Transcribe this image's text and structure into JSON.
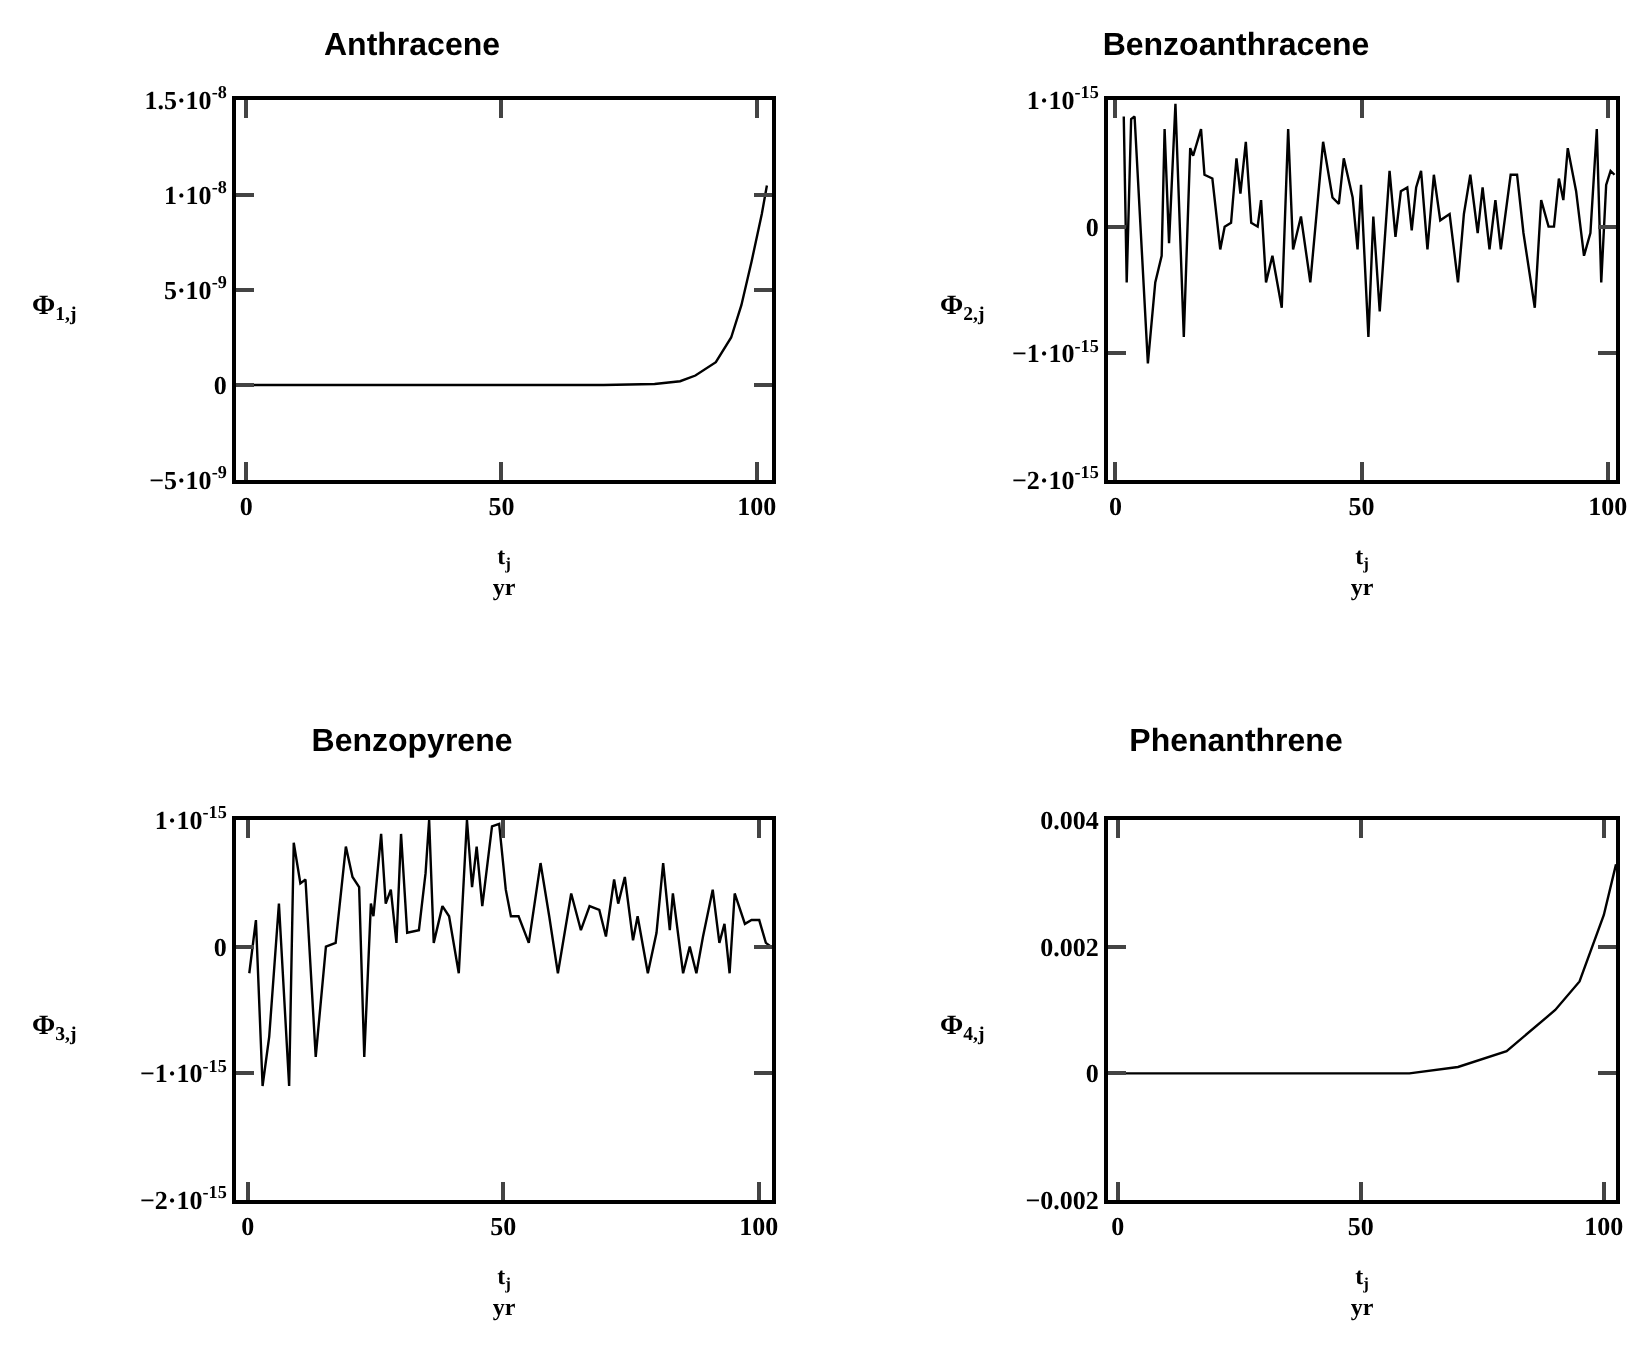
{
  "chart_data": [
    {
      "type": "line",
      "title": "Anthracene",
      "xlabel": "t$_{j}$\nyr",
      "ylabel": "Φ$_{1,j}$",
      "xlim": [
        -2,
        103
      ],
      "xticks": [
        0,
        50,
        100
      ],
      "ylim": [
        -5e-09,
        1.5e-08
      ],
      "yticks": [
        {
          "value": -5e-09,
          "label": "−5·10$^{-9}$"
        },
        {
          "value": 0,
          "label": "0"
        },
        {
          "value": 5e-09,
          "label": "5·10$^{-9}$"
        },
        {
          "value": 1e-08,
          "label": "1·10$^{-8}$"
        },
        {
          "value": 1.5e-08,
          "label": "1.5·10$^{-8}$"
        }
      ],
      "series": [
        {
          "color": "#000000",
          "x": [
            0,
            10,
            20,
            30,
            40,
            50,
            60,
            70,
            80,
            85,
            88,
            92,
            95,
            97,
            99,
            101,
            102
          ],
          "values": [
            0,
            0,
            0,
            0,
            0,
            0,
            0,
            0,
            5e-11,
            2e-10,
            5e-10,
            1.2e-09,
            2.5e-09,
            4.2e-09,
            6.5e-09,
            9e-09,
            1.05e-08
          ]
        }
      ]
    },
    {
      "type": "line",
      "title": "Benzoanthracene",
      "xlabel": "t$_{j}$\nyr",
      "ylabel": "Φ$_{2,j}$",
      "xlim": [
        -1.5,
        101.7
      ],
      "xticks": [
        0,
        50,
        100
      ],
      "ylim": [
        -2e-15,
        1e-15
      ],
      "yticks": [
        {
          "value": -2e-15,
          "label": "−2·10$^{-15}$"
        },
        {
          "value": -1e-15,
          "label": "−1·10$^{-15}$"
        },
        {
          "value": 0,
          "label": "0"
        },
        {
          "value": 1e-15,
          "label": "1·10$^{-15}$"
        }
      ],
      "series": [
        {
          "color": "#000000",
          "x": [
            1.7,
            2.3,
            3.2,
            3.9,
            6.6,
            8.1,
            9.4,
            10,
            10.9,
            12.2,
            13.9,
            15.2,
            15.8,
            17.4,
            18.1,
            19.7,
            21.3,
            22.2,
            23.5,
            24.6,
            25.4,
            26.5,
            27.6,
            28.9,
            29.6,
            30.6,
            31.9,
            33.8,
            35.1,
            36.1,
            37.7,
            39.6,
            42.2,
            44.1,
            45.4,
            46.4,
            48.2,
            49.2,
            49.9,
            51.4,
            52.4,
            53.7,
            55.7,
            56.9,
            58,
            59.3,
            60.2,
            61.1,
            62.1,
            63.4,
            64.7,
            66,
            67.9,
            69.6,
            70.8,
            72.1,
            73.6,
            74.6,
            76,
            77.2,
            78.3,
            80.3,
            81.6,
            82.9,
            85.2,
            86.5,
            88,
            89.1,
            90.1,
            91,
            91.9,
            93.6,
            95.2,
            96.5,
            97.8,
            98.7,
            99.7,
            100.6,
            101.4
          ],
          "values": [
            8.7e-16,
            -4.4e-16,
            8.5e-16,
            8.7e-16,
            -1.08e-15,
            -4.4e-16,
            -2.3e-16,
            7.7e-16,
            -1.3e-16,
            9.7e-16,
            -8.7e-16,
            6.2e-16,
            5.6e-16,
            7.7e-16,
            4.1e-16,
            3.8e-16,
            -1.8e-16,
            0,
            3e-17,
            5.4e-16,
            2.6e-16,
            6.7e-16,
            3e-17,
            0,
            2.1e-16,
            -4.4e-16,
            -2.3e-16,
            -6.4e-16,
            7.7e-16,
            -1.8e-16,
            8e-17,
            -4.4e-16,
            6.7e-16,
            2.3e-16,
            1.8e-16,
            5.4e-16,
            2.3e-16,
            -1.8e-16,
            3.3e-16,
            -8.7e-16,
            8e-17,
            -6.7e-16,
            4.4e-16,
            -8e-17,
            2.8e-16,
            3.1e-16,
            -3e-17,
            3.1e-16,
            4.4e-16,
            -1.8e-16,
            4.1e-16,
            5e-17,
            1e-16,
            -4.4e-16,
            1e-16,
            4.1e-16,
            -5e-17,
            3.1e-16,
            -1.8e-16,
            2.1e-16,
            -1.8e-16,
            4.1e-16,
            4.1e-16,
            -5e-17,
            -6.4e-16,
            2.1e-16,
            0,
            0,
            3.8e-16,
            2.1e-16,
            6.2e-16,
            2.8e-16,
            -2.3e-16,
            -5e-17,
            7.7e-16,
            -4.4e-16,
            3.3e-16,
            4.4e-16,
            4.1e-16
          ]
        }
      ]
    },
    {
      "type": "line",
      "title": "Benzopyrene",
      "xlabel": "t$_{j}$\nyr",
      "ylabel": "Φ$_{3,j}$",
      "xlim": [
        -2.3,
        102.6
      ],
      "xticks": [
        0,
        50,
        100
      ],
      "ylim": [
        -2e-15,
        1e-15
      ],
      "yticks": [
        {
          "value": -2e-15,
          "label": "−2·10$^{-15}$"
        },
        {
          "value": -1e-15,
          "label": "−1·10$^{-15}$"
        },
        {
          "value": 0,
          "label": "0"
        },
        {
          "value": 1e-15,
          "label": "1·10$^{-15}$"
        }
      ],
      "series": [
        {
          "color": "#000000",
          "x": [
            0.3,
            1.6,
            2.9,
            4.2,
            6.1,
            8.1,
            9,
            10.3,
            11.3,
            13.3,
            15.3,
            17.2,
            19.2,
            20.5,
            21.8,
            22.8,
            24.1,
            24.6,
            26.1,
            27,
            28,
            29.1,
            30,
            31.2,
            33.5,
            34.8,
            35.5,
            36.4,
            38.1,
            39.4,
            41.3,
            42.9,
            43.9,
            44.8,
            45.9,
            47.8,
            49.2,
            50.5,
            51.5,
            53,
            55,
            57.3,
            59,
            60.7,
            63.3,
            65.2,
            66.9,
            68.8,
            70.1,
            71.7,
            72.5,
            73.8,
            75.4,
            76.3,
            78.3,
            80,
            81.3,
            82.6,
            83.2,
            85.2,
            86.5,
            87.8,
            89.1,
            91,
            92.3,
            93.3,
            94.3,
            95.3,
            97.3,
            98.6,
            100.1,
            101.4,
            102.4
          ],
          "values": [
            -2.1e-16,
            2.1e-16,
            -1.1e-15,
            -7.1e-16,
            3.4e-16,
            -1.1e-15,
            8.2e-16,
            5e-16,
            5.3e-16,
            -8.7e-16,
            0,
            3e-17,
            7.9e-16,
            5.5e-16,
            4.7e-16,
            -8.7e-16,
            3.4e-16,
            2.4e-16,
            8.9e-16,
            3.4e-16,
            4.5e-16,
            3e-17,
            8.9e-16,
            1.1e-16,
            1.3e-16,
            5.8e-16,
            1e-15,
            3e-17,
            3.2e-16,
            2.4e-16,
            -2.1e-16,
            1e-15,
            4.7e-16,
            7.9e-16,
            3.2e-16,
            9.5e-16,
            9.7e-16,
            4.5e-16,
            2.4e-16,
            2.4e-16,
            3e-17,
            6.6e-16,
            2.4e-16,
            -2.1e-16,
            4.2e-16,
            1.3e-16,
            3.2e-16,
            2.9e-16,
            8e-17,
            5.3e-16,
            3.4e-16,
            5.5e-16,
            5e-17,
            2.4e-16,
            -2.1e-16,
            1.1e-16,
            6.6e-16,
            1.3e-16,
            4.2e-16,
            -2.1e-16,
            0,
            -2.1e-16,
            8e-17,
            4.5e-16,
            3e-17,
            1.8e-16,
            -2.1e-16,
            4.2e-16,
            1.8e-16,
            2.1e-16,
            2.1e-16,
            3e-17,
            0
          ]
        }
      ]
    },
    {
      "type": "line",
      "title": "Phenanthrene",
      "xlabel": "t$_{j}$\nyr",
      "ylabel": "Φ$_{4,j}$",
      "xlim": [
        -2,
        102.5
      ],
      "xticks": [
        0,
        50,
        100
      ],
      "ylim": [
        -0.002,
        0.004
      ],
      "yticks": [
        {
          "value": -0.002,
          "label": "−0.002"
        },
        0,
        0.002,
        0.004
      ],
      "series": [
        {
          "color": "#000000",
          "x": [
            0,
            10,
            20,
            30,
            40,
            50,
            60,
            70,
            80,
            90,
            95,
            100,
            102.5
          ],
          "values": [
            0,
            0,
            0,
            0,
            0,
            0,
            0,
            0.0001,
            0.00035,
            0.001,
            0.00145,
            0.0025,
            0.0033
          ]
        }
      ]
    }
  ]
}
